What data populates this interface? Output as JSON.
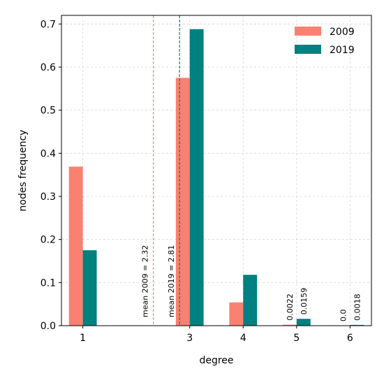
{
  "chart_data": {
    "type": "bar",
    "title": "",
    "xlabel": "degree",
    "ylabel": "nodes frequency",
    "x_ticks": [
      1,
      3,
      4,
      5,
      6
    ],
    "xlim": [
      0.6,
      6.4
    ],
    "ylim": [
      0,
      0.72
    ],
    "y_ticks": [
      "0.0",
      "0.1",
      "0.2",
      "0.3",
      "0.4",
      "0.5",
      "0.6",
      "0.7"
    ],
    "grid": true,
    "legend_position": "top-right",
    "series": [
      {
        "name": "2009",
        "color": "#fa8072",
        "points": [
          {
            "x": 1,
            "y": 0.369
          },
          {
            "x": 3,
            "y": 0.575
          },
          {
            "x": 4,
            "y": 0.054
          },
          {
            "x": 5,
            "y": 0.0022
          },
          {
            "x": 6,
            "y": 0.0
          }
        ]
      },
      {
        "name": "2019",
        "color": "#008080",
        "points": [
          {
            "x": 1,
            "y": 0.175
          },
          {
            "x": 3,
            "y": 0.688
          },
          {
            "x": 4,
            "y": 0.118
          },
          {
            "x": 5,
            "y": 0.0159
          },
          {
            "x": 6,
            "y": 0.0018
          }
        ]
      }
    ],
    "mean_lines": [
      {
        "label": "mean 2009 = 2.32",
        "x": 2.32,
        "color": "#fa8072"
      },
      {
        "label": "mean 2019 = 2.81",
        "x": 2.81,
        "color": "#008080"
      }
    ],
    "bar_annotations": [
      {
        "x": 5,
        "series": 0,
        "text": "0.0022"
      },
      {
        "x": 5,
        "series": 1,
        "text": "0.0159"
      },
      {
        "x": 6,
        "series": 0,
        "text": "0.0"
      },
      {
        "x": 6,
        "series": 1,
        "text": "0.0018"
      }
    ]
  }
}
